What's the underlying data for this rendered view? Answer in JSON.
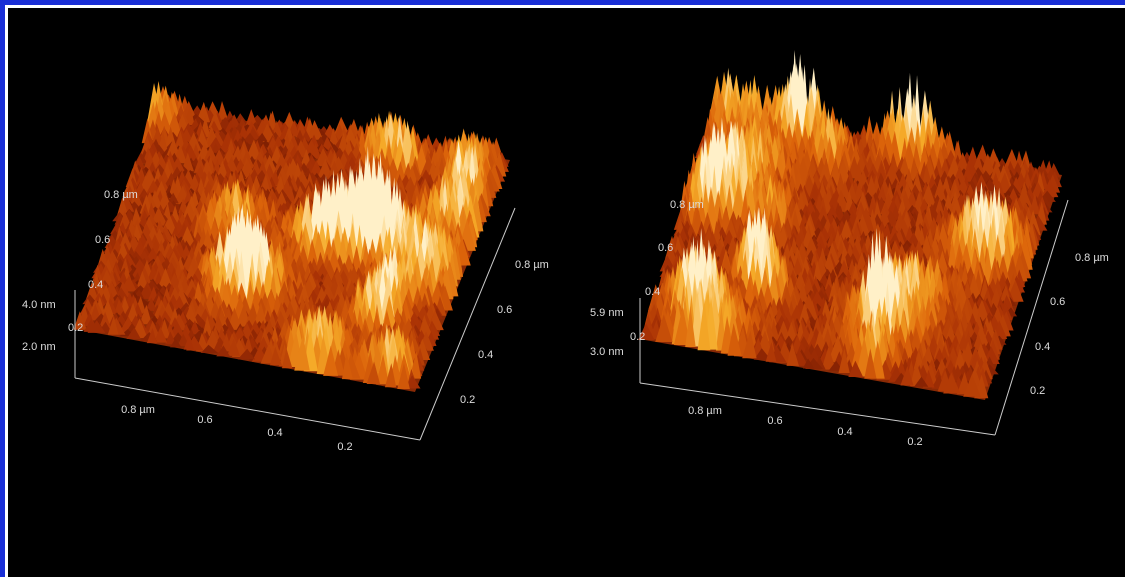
{
  "panels": [
    {
      "z_labels": [
        "4.0 nm",
        "2.0 nm"
      ],
      "left_labels": [
        "0.8 µm",
        "0.6",
        "0.4",
        "0.2"
      ],
      "front_labels": [
        "0.8 µm",
        "0.6",
        "0.4",
        "0.2"
      ],
      "right_labels": [
        "0.8 µm",
        "0.6",
        "0.4",
        "0.2"
      ]
    },
    {
      "z_labels": [
        "5.9 nm",
        "3.0 nm"
      ],
      "left_labels": [
        "0.8 µm",
        "0.6",
        "0.4",
        "0.2"
      ],
      "front_labels": [
        "0.8 µm",
        "0.6",
        "0.4",
        "0.2"
      ],
      "right_labels": [
        "0.8 µm",
        "0.6",
        "0.4",
        "0.2"
      ]
    }
  ]
}
